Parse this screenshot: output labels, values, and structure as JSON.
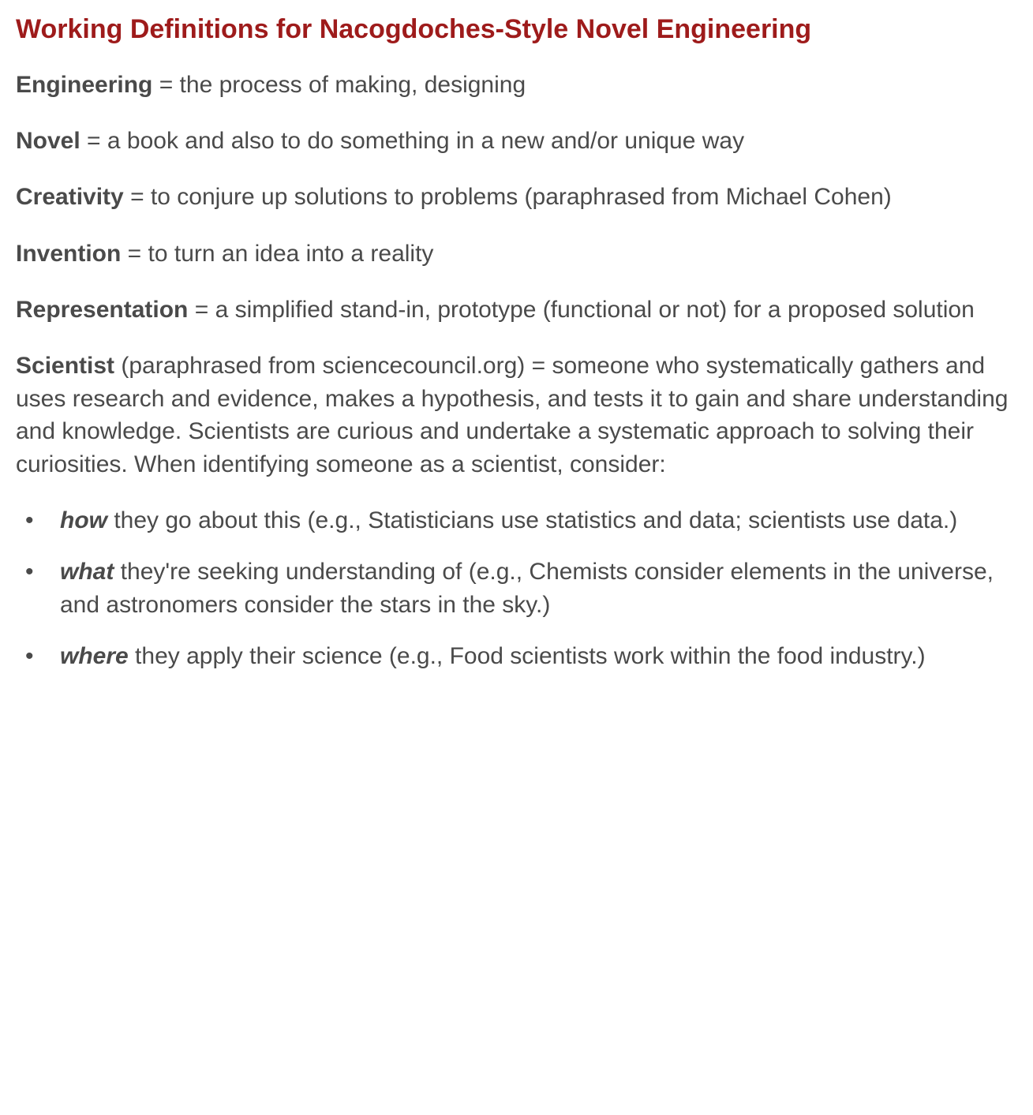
{
  "heading": {
    "text": "Working Definitions for Nacogdoches-Style Novel Engineering",
    "color": "#9e1b1b",
    "fontsize": 34,
    "fontweight": 600
  },
  "body": {
    "text_color": "#4a4a4a",
    "fontsize": 30,
    "background_color": "#ffffff"
  },
  "definitions": [
    {
      "term": "Engineering",
      "text": " = the process of making, designing"
    },
    {
      "term": "Novel",
      "text": " = a book and also to do something in a new and/or unique way"
    },
    {
      "term": "Creativity",
      "text": " = to conjure up solutions to problems (paraphrased from Michael Cohen)"
    },
    {
      "term": "Invention",
      "text": " = to turn an idea into a reality"
    },
    {
      "term": "Representation",
      "text": " = a simplified stand-in, prototype (functional or not) for a proposed solution"
    },
    {
      "term": "Scientist",
      "text": " (paraphrased from sciencecouncil.org) = someone who systematically gathers and uses research and evidence, makes a hypothesis, and tests it to gain and share understanding and knowledge. Scientists are curious and undertake a systematic approach to solving their curiosities. When identifying someone as a scientist, consider:"
    }
  ],
  "bullets": [
    {
      "lead": "how",
      "rest": " they go about this (e.g., Statisticians use statistics and data; scientists use data.)"
    },
    {
      "lead": "what",
      "rest": " they're seeking understanding of (e.g., Chemists consider elements in the universe, and astronomers consider the stars in the sky.)"
    },
    {
      "lead": "where",
      "rest": " they apply their science (e.g., Food scientists work within the food industry.)"
    }
  ]
}
